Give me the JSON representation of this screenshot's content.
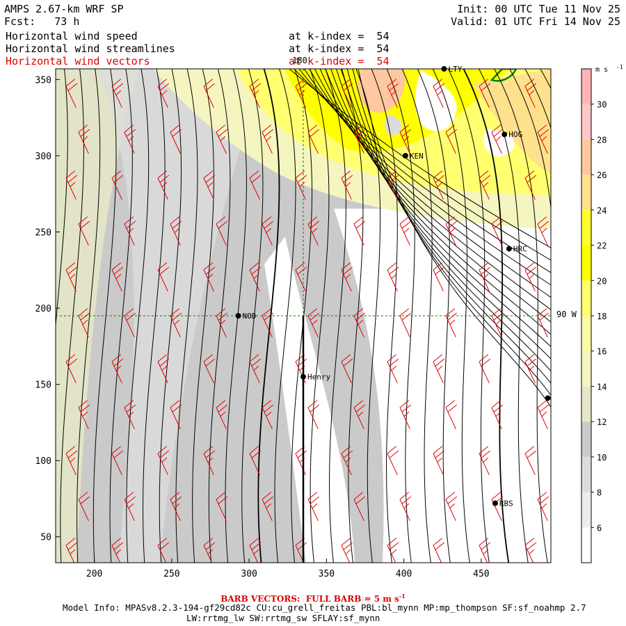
{
  "header": {
    "title": "AMPS 2.67-km WRF SP",
    "forecast": "Fcst:   73 h",
    "init": "Init: 00 UTC Tue 11 Nov 25",
    "valid": "Valid: 01 UTC Fri 14 Nov 25",
    "fields": [
      {
        "name": "Horizontal wind speed",
        "level": "at k-index =  54",
        "color": "#000000"
      },
      {
        "name": "Horizontal wind streamlines",
        "level": "at k-index =  54",
        "color": "#000000"
      },
      {
        "name": "Horizontal wind vectors",
        "level": "at k-index =  54",
        "color": "#dd0000"
      }
    ]
  },
  "footer": {
    "barb_note": "BARB VECTORS:  FULL BARB = 5 m s",
    "barb_exp": "-1",
    "model_info": "Model Info: MPASv8.2.3-194-gf29cd82c CU:cu_grell_freitas PBL:bl_mynn MP:mp_thompson SF:sf_noahmp 2.7",
    "model_info2": "LW:rrtmg_lw SW:rrtmg_sw SFLAY:sf_mynn"
  },
  "chart_data": {
    "type": "heatmap",
    "title": "Horizontal wind speed, streamlines and vectors at k-index = 54",
    "xlim": [
      175,
      495
    ],
    "ylim": [
      33,
      357
    ],
    "x_ticks": [
      200,
      250,
      300,
      350,
      400,
      450
    ],
    "y_ticks": [
      50,
      100,
      150,
      200,
      250,
      300,
      350
    ],
    "colorbar": {
      "unit": "m s",
      "unit_exp": "-1",
      "levels": [
        6,
        8,
        10,
        12,
        14,
        16,
        18,
        20,
        22,
        24,
        26,
        28,
        30
      ],
      "colors": [
        "#ffffff",
        "#ececec",
        "#dcdcdc",
        "#cacaca",
        "#e6e6c8",
        "#f5f5c0",
        "#fafaa8",
        "#ffff70",
        "#ffff00",
        "#ffff30",
        "#ffe08c",
        "#ffc8a0",
        "#ffc8c8",
        "#ffb4b4"
      ]
    },
    "reference_lines": {
      "meridian_180_x": 335,
      "meridian_180_label": "180",
      "meridian_90W_y": 195,
      "meridian_90W_label": "90 W"
    },
    "stations": [
      {
        "id": "LTY",
        "x": 426,
        "y": 357
      },
      {
        "id": "HOG",
        "x": 465,
        "y": 314
      },
      {
        "id": "KEN",
        "x": 401,
        "y": 300
      },
      {
        "id": "HRC",
        "x": 468,
        "y": 239
      },
      {
        "id": "NOD",
        "x": 293,
        "y": 195
      },
      {
        "id": "Henry",
        "x": 335,
        "y": 155
      },
      {
        "id": "RBS",
        "x": 459,
        "y": 72
      },
      {
        "id": "",
        "x": 493,
        "y": 141
      }
    ],
    "barb_full_ms": 5
  }
}
